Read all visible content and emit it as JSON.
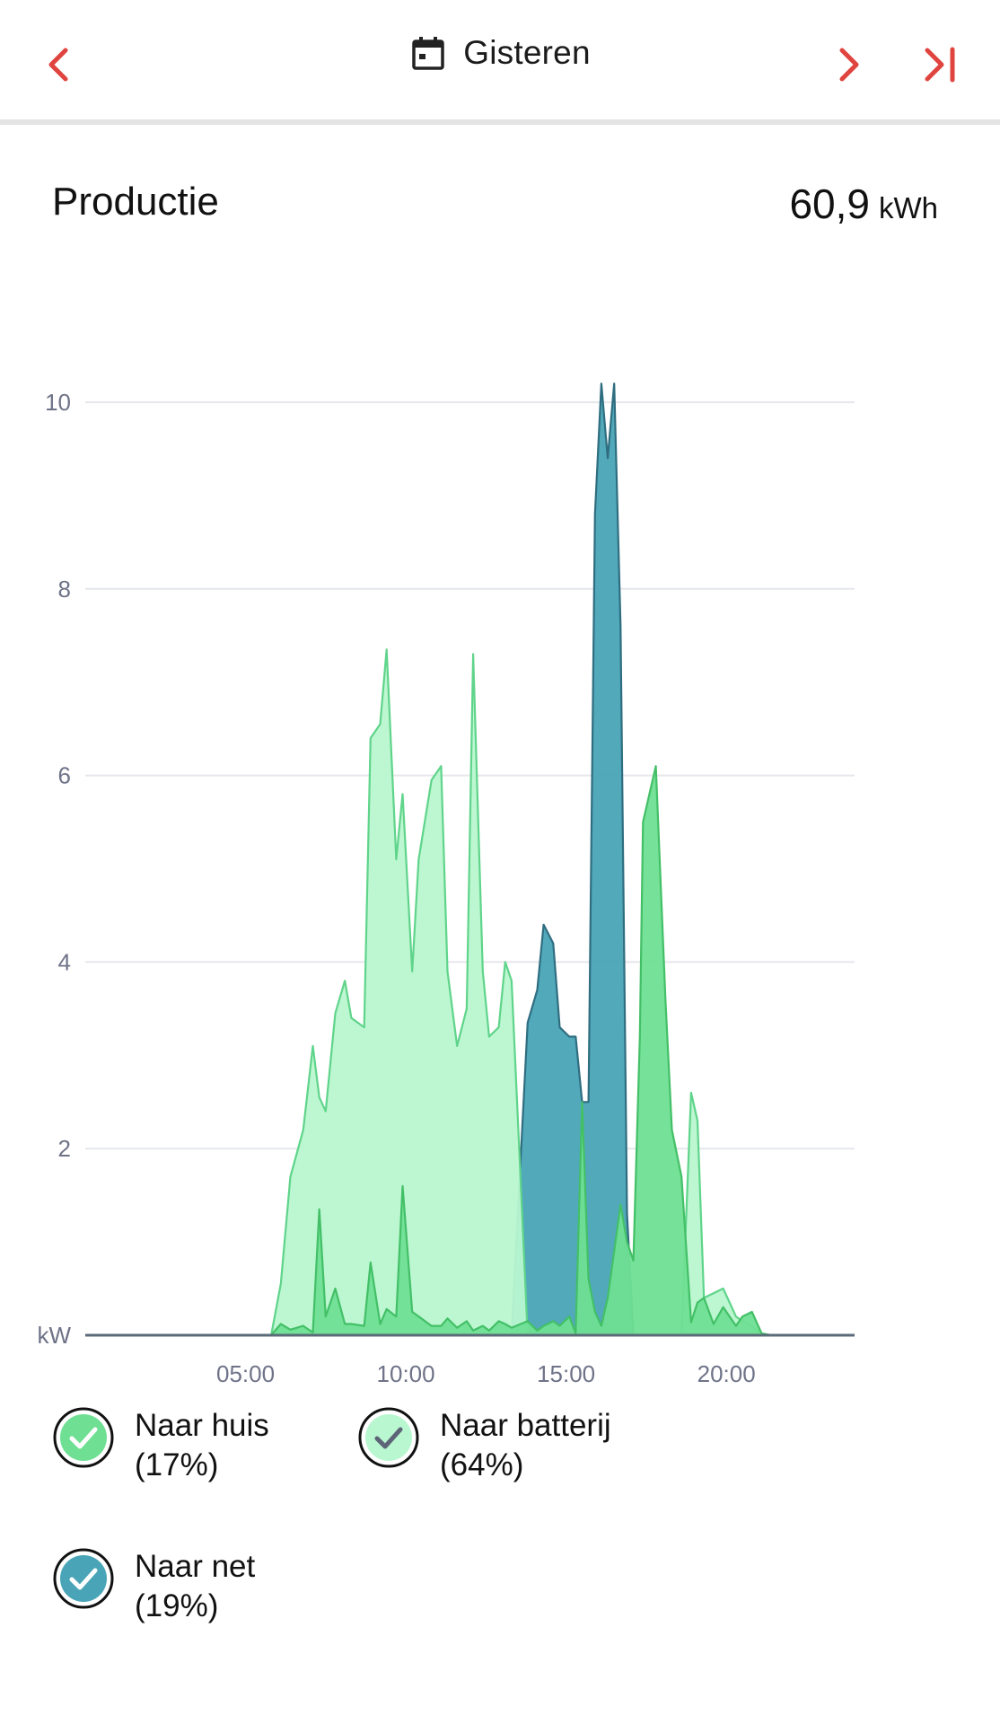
{
  "header": {
    "date_label": "Gisteren",
    "icons": {
      "prev": "chevron-left-icon",
      "calendar": "calendar-icon",
      "next": "chevron-right-icon",
      "last": "skip-to-end-icon"
    },
    "accent_color": "#e0443e"
  },
  "summary": {
    "title": "Productie",
    "total_value": "60,9",
    "total_unit": "kWh"
  },
  "chart_data": {
    "type": "area",
    "ylabel": "kW",
    "ylim": [
      0,
      10
    ],
    "yticks": [
      2,
      4,
      6,
      8,
      10
    ],
    "xlim": [
      0,
      24
    ],
    "xtick_labels": [
      "05:00",
      "10:00",
      "15:00",
      "20:00"
    ],
    "xtick_values": [
      5,
      10,
      15,
      20
    ],
    "grid": true,
    "colors": {
      "net": "#48a4b6",
      "net_stroke": "#2f6e80",
      "batterij": "#b9f7d0",
      "batterij_stroke": "#5fd48a",
      "huis": "#6fdf93",
      "huis_stroke": "#43c067"
    },
    "x": [
      0,
      5,
      5.8,
      6.1,
      6.4,
      6.8,
      7.1,
      7.3,
      7.5,
      7.8,
      8.1,
      8.3,
      8.7,
      8.9,
      9.2,
      9.4,
      9.7,
      9.9,
      10.2,
      10.4,
      10.8,
      11.1,
      11.3,
      11.6,
      11.9,
      12.1,
      12.4,
      12.6,
      12.9,
      13.1,
      13.3,
      13.8,
      14.1,
      14.3,
      14.6,
      14.8,
      15.1,
      15.3,
      15.5,
      15.7,
      15.9,
      16.1,
      16.3,
      16.5,
      16.7,
      16.9,
      17.1,
      17.3,
      17.4,
      17.8,
      18.1,
      18.3,
      18.6,
      18.9,
      19.1,
      19.3,
      19.6,
      19.9,
      20.3,
      20.5,
      20.8,
      21.1,
      21.4,
      24
    ],
    "series": [
      {
        "name": "Naar huis",
        "values": [
          0,
          0,
          0,
          0.12,
          0.06,
          0.1,
          0.03,
          1.35,
          0.2,
          0.5,
          0.12,
          0.12,
          0.1,
          0.78,
          0.12,
          0.28,
          0.2,
          1.6,
          0.25,
          0.2,
          0.1,
          0.1,
          0.18,
          0.08,
          0.15,
          0.05,
          0.1,
          0.05,
          0.15,
          0.12,
          0.08,
          0.15,
          0.05,
          0.1,
          0.15,
          0.1,
          0.2,
          0.02,
          2.5,
          0.6,
          0.25,
          0.1,
          0.4,
          0.9,
          1.4,
          1.0,
          0.8,
          3.2,
          5.5,
          6.1,
          3.6,
          2.2,
          1.7,
          0.14,
          0.35,
          0.4,
          0.12,
          0.3,
          0.1,
          0.2,
          0.25,
          0.02,
          0,
          0
        ]
      },
      {
        "name": "Naar batterij",
        "values": [
          0,
          0,
          0,
          0.55,
          1.7,
          2.2,
          3.1,
          2.55,
          2.4,
          3.45,
          3.8,
          3.4,
          3.3,
          6.4,
          6.55,
          7.35,
          5.1,
          5.8,
          3.9,
          5.1,
          5.95,
          6.1,
          3.9,
          3.1,
          3.5,
          7.3,
          3.9,
          3.2,
          3.3,
          4.0,
          3.8,
          0,
          0,
          0,
          0,
          0,
          0,
          0,
          0,
          0,
          0,
          0,
          0,
          0,
          0,
          0,
          0,
          0,
          0,
          0,
          0,
          0,
          0,
          2.6,
          2.3,
          0.4,
          0.45,
          0.5,
          0.2,
          0.15,
          0.1,
          0,
          0,
          0
        ]
      },
      {
        "name": "Naar net",
        "values": [
          0,
          0,
          0,
          0,
          0,
          0,
          0,
          0,
          0,
          0,
          0,
          0,
          0,
          0,
          0,
          0,
          0,
          0,
          0,
          0,
          0,
          0,
          0,
          0,
          0,
          0,
          0,
          0,
          0,
          0,
          0,
          3.35,
          3.7,
          4.4,
          4.2,
          3.3,
          3.2,
          3.2,
          2.5,
          2.5,
          8.8,
          10.2,
          9.4,
          10.2,
          7.6,
          1.3,
          0,
          0,
          0,
          0,
          0,
          0,
          0,
          0,
          0,
          0,
          0,
          0,
          0,
          0,
          0,
          0,
          0,
          0
        ]
      }
    ]
  },
  "legend": [
    {
      "label": "Naar huis",
      "percent": "(17%)",
      "color": "#6fdf93",
      "checked": true
    },
    {
      "label": "Naar batterij",
      "percent": "(64%)",
      "color": "#b9f7d0",
      "checked": true
    },
    {
      "label": "Naar net",
      "percent": "(19%)",
      "color": "#48a4b6",
      "checked": true
    }
  ]
}
